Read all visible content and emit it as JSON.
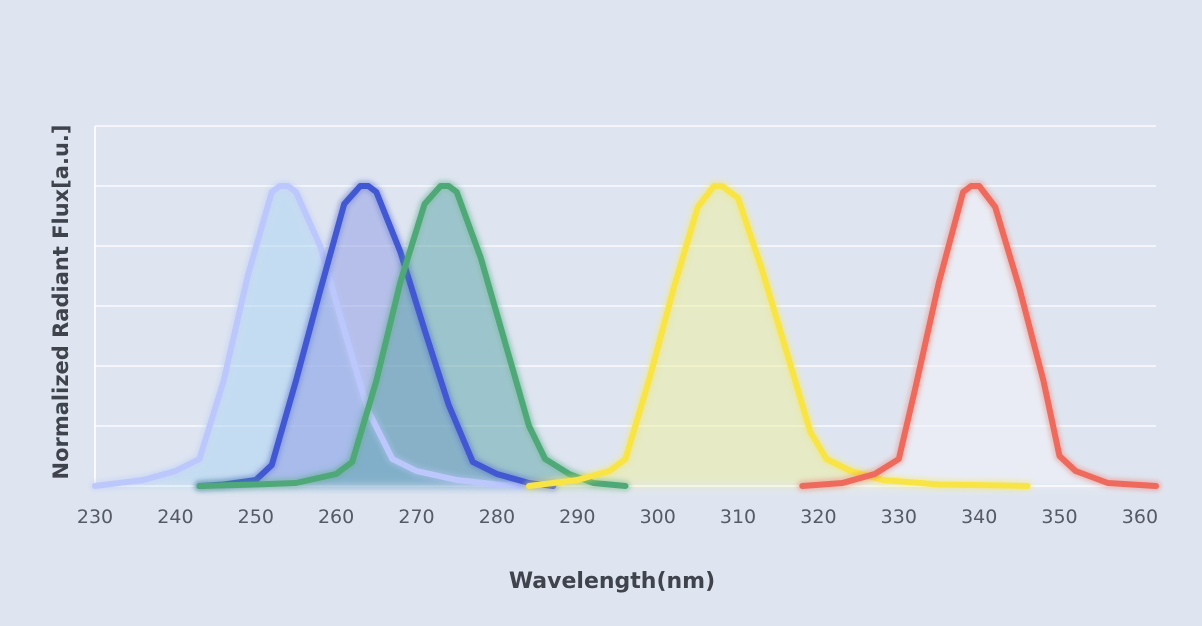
{
  "chart_data": {
    "type": "line",
    "title": "",
    "xlabel": "Wavelength(nm)",
    "ylabel": "Normalized Radiant Flux[a.u.]",
    "xlim": [
      230,
      362
    ],
    "ylim": [
      0,
      1.2
    ],
    "x_ticks": [
      "230",
      "240",
      "250",
      "260",
      "270",
      "280",
      "290",
      "300",
      "310",
      "320",
      "330",
      "340",
      "350",
      "360"
    ],
    "y_gridlines": [
      0.2,
      0.4,
      0.6,
      0.8,
      1.0,
      1.2
    ],
    "grid": true,
    "legend": "none",
    "series": [
      {
        "color": "#bcc8fb",
        "fill": "#a9d4f2",
        "x": [
          230,
          236,
          240,
          243,
          246,
          249,
          252,
          253,
          254,
          255,
          258,
          261,
          264,
          267,
          270,
          275,
          280,
          283
        ],
        "y": [
          0,
          0.02,
          0.05,
          0.09,
          0.35,
          0.7,
          0.98,
          1.0,
          1.0,
          0.98,
          0.8,
          0.52,
          0.25,
          0.09,
          0.05,
          0.02,
          0.005,
          0
        ]
      },
      {
        "color": "#4158d2",
        "fill": "#8d9ae4",
        "x": [
          243,
          246,
          250,
          252,
          255,
          258,
          261,
          263,
          264,
          265,
          268,
          271,
          274,
          277,
          280,
          284,
          287
        ],
        "y": [
          0,
          0.005,
          0.02,
          0.07,
          0.35,
          0.65,
          0.94,
          1.0,
          1.0,
          0.98,
          0.78,
          0.52,
          0.27,
          0.08,
          0.04,
          0.01,
          0
        ]
      },
      {
        "color": "#4fa877",
        "fill": "#5aa3a8",
        "x": [
          243,
          250,
          255,
          260,
          262,
          265,
          268,
          271,
          273,
          274,
          275,
          278,
          281,
          284,
          286,
          289,
          292,
          296
        ],
        "y": [
          0,
          0.005,
          0.01,
          0.04,
          0.08,
          0.35,
          0.68,
          0.94,
          1.0,
          1.0,
          0.98,
          0.76,
          0.48,
          0.2,
          0.09,
          0.04,
          0.01,
          0
        ]
      },
      {
        "color": "#f8e545",
        "fill": "#eef09a",
        "x": [
          284,
          290,
          294,
          296,
          299,
          302,
          305,
          307,
          308,
          310,
          313,
          316,
          319,
          321,
          324,
          328,
          335,
          342,
          346
        ],
        "y": [
          0,
          0.02,
          0.05,
          0.09,
          0.36,
          0.66,
          0.93,
          1.0,
          1.0,
          0.96,
          0.72,
          0.45,
          0.18,
          0.09,
          0.05,
          0.02,
          0.005,
          0.002,
          0
        ]
      },
      {
        "color": "#ee6a5d",
        "fill": "#f3f4f9",
        "x": [
          318,
          323,
          327,
          330,
          332,
          335,
          338,
          339,
          340,
          342,
          345,
          348,
          350,
          352,
          356,
          362
        ],
        "y": [
          0,
          0.01,
          0.04,
          0.09,
          0.32,
          0.68,
          0.98,
          1.0,
          1.0,
          0.93,
          0.66,
          0.35,
          0.1,
          0.05,
          0.01,
          0
        ]
      }
    ]
  }
}
